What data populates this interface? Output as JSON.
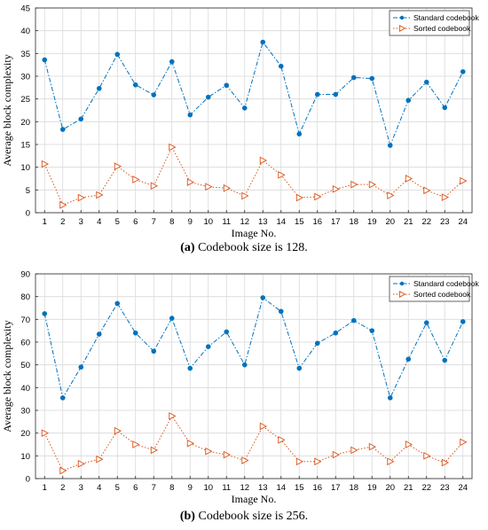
{
  "chart_data": [
    {
      "type": "line",
      "panel_letter": "(a)",
      "caption_text": "Codebook size is 128.",
      "xlabel": "Image No.",
      "ylabel": "Average block complexity",
      "x": [
        1,
        2,
        3,
        4,
        5,
        6,
        7,
        8,
        9,
        10,
        11,
        12,
        13,
        14,
        15,
        16,
        17,
        18,
        19,
        20,
        21,
        22,
        23,
        24
      ],
      "xlim": [
        0.5,
        24.5
      ],
      "ylim": [
        0,
        45
      ],
      "yticks": [
        0,
        5,
        10,
        15,
        20,
        25,
        30,
        35,
        40,
        45
      ],
      "grid": true,
      "legend_position": "top-right",
      "series": [
        {
          "name": "Standard codebook",
          "color": "#0072BD",
          "marker": "circle",
          "line": "dash-dot",
          "values": [
            33.6,
            18.3,
            20.6,
            27.3,
            34.8,
            28.1,
            25.9,
            33.2,
            21.5,
            25.4,
            28.0,
            23.0,
            37.5,
            32.2,
            17.3,
            26.0,
            26.0,
            29.7,
            29.5,
            14.8,
            24.7,
            28.7,
            23.1,
            31.0
          ]
        },
        {
          "name": "Sorted codebook",
          "color": "#D95319",
          "marker": "triangle-right",
          "line": "dotted",
          "values": [
            10.7,
            1.7,
            3.3,
            3.9,
            10.2,
            7.3,
            5.9,
            14.4,
            6.7,
            5.7,
            5.4,
            3.7,
            11.5,
            8.3,
            3.3,
            3.5,
            5.2,
            6.2,
            6.2,
            3.8,
            7.5,
            4.9,
            3.4,
            7.0
          ]
        }
      ]
    },
    {
      "type": "line",
      "panel_letter": "(b)",
      "caption_text": "Codebook size is 256.",
      "xlabel": "Image No.",
      "ylabel": "Average block complexity",
      "x": [
        1,
        2,
        3,
        4,
        5,
        6,
        7,
        8,
        9,
        10,
        11,
        12,
        13,
        14,
        15,
        16,
        17,
        18,
        19,
        20,
        21,
        22,
        23,
        24
      ],
      "xlim": [
        0.5,
        24.5
      ],
      "ylim": [
        0,
        90
      ],
      "yticks": [
        0,
        10,
        20,
        30,
        40,
        50,
        60,
        70,
        80,
        90
      ],
      "grid": true,
      "legend_position": "top-right",
      "series": [
        {
          "name": "Standard codebook",
          "color": "#0072BD",
          "marker": "circle",
          "line": "dash-dot",
          "values": [
            72.5,
            35.5,
            49.0,
            63.5,
            77.0,
            64.0,
            56.0,
            70.5,
            48.5,
            58.0,
            64.5,
            50.0,
            79.5,
            73.5,
            48.5,
            59.5,
            64.0,
            69.5,
            65.0,
            35.5,
            52.5,
            68.5,
            52.0,
            69.0
          ]
        },
        {
          "name": "Sorted codebook",
          "color": "#D95319",
          "marker": "triangle-right",
          "line": "dotted",
          "values": [
            20.0,
            3.5,
            6.5,
            8.5,
            21.0,
            15.0,
            12.5,
            27.5,
            15.5,
            12.0,
            10.5,
            8.0,
            23.0,
            17.0,
            7.5,
            7.5,
            10.5,
            12.5,
            14.0,
            7.5,
            15.0,
            10.0,
            7.0,
            16.0
          ]
        }
      ]
    }
  ]
}
